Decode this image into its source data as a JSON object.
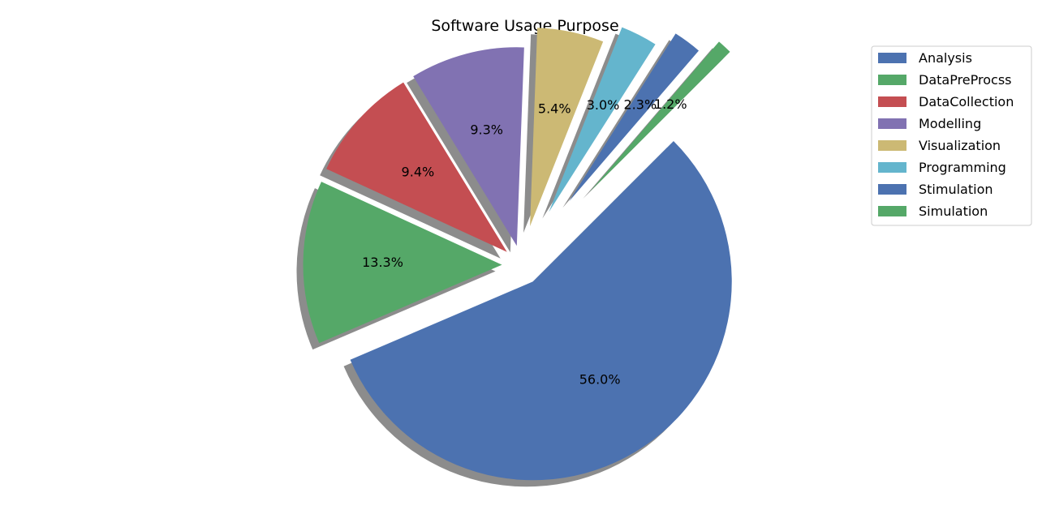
{
  "chart_data": {
    "type": "pie",
    "title": "Software Usage Purpose",
    "labels": [
      "Analysis",
      "DataPreProcss",
      "DataCollection",
      "Modelling",
      "Visualization",
      "Programming",
      "Stimulation",
      "Simulation"
    ],
    "values": [
      56.0,
      13.3,
      9.4,
      9.3,
      5.4,
      3.0,
      2.3,
      1.2
    ],
    "value_labels": [
      "56.0%",
      "13.3%",
      "9.4%",
      "9.3%",
      "5.4%",
      "3.0%",
      "2.3%",
      "1.2%"
    ],
    "explode": [
      0.1,
      0.1,
      0.1,
      0.1,
      0.2,
      0.3,
      0.4,
      0.5
    ],
    "colors": [
      "#4c72b0",
      "#55a868",
      "#c44e52",
      "#8172b2",
      "#ccb974",
      "#64b5cd",
      "#4c72b0",
      "#55a868"
    ],
    "start_angle_deg": 45,
    "direction": "clockwise",
    "shadow": true,
    "legend_position": "upper-right"
  }
}
